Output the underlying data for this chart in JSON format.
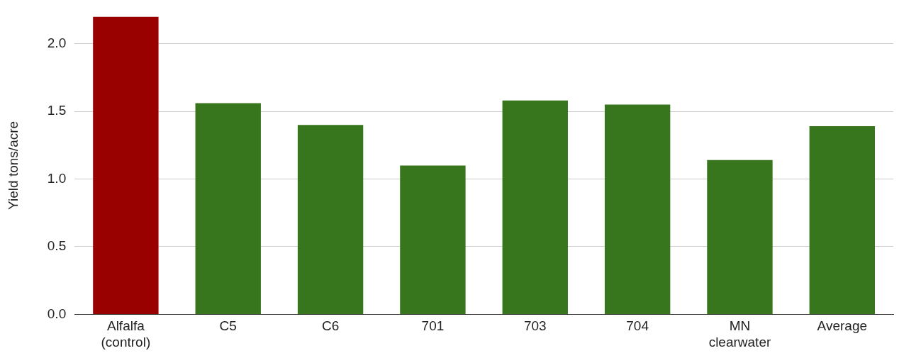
{
  "chart_data": {
    "type": "bar",
    "ylabel": "Yield tons/acre",
    "categories": [
      "Alfalfa (control)",
      "C5",
      "C6",
      "701",
      "703",
      "704",
      "MN clearwater",
      "Average"
    ],
    "values": [
      2.2,
      1.56,
      1.4,
      1.1,
      1.58,
      1.55,
      1.14,
      1.39
    ],
    "colors": [
      "#990000",
      "#38761d",
      "#38761d",
      "#38761d",
      "#38761d",
      "#38761d",
      "#38761d",
      "#38761d"
    ],
    "ylim": [
      0,
      2.2
    ],
    "yticks": [
      {
        "value": 0,
        "label": "0.0"
      },
      {
        "value": 0.5,
        "label": "0.5"
      },
      {
        "value": 1,
        "label": "1.0"
      },
      {
        "value": 1.5,
        "label": "1.5"
      },
      {
        "value": 2,
        "label": "2.0"
      }
    ],
    "grid": "y",
    "legend": false
  }
}
